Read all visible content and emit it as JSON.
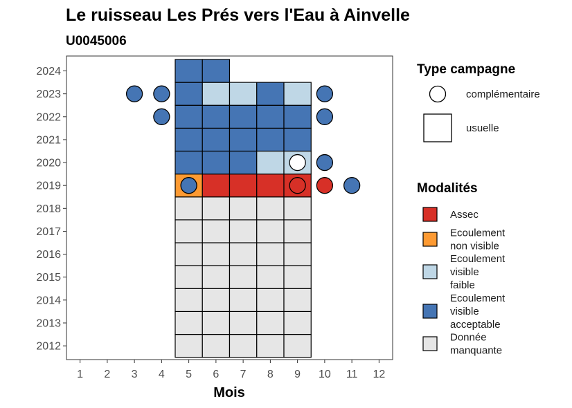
{
  "chart_data": {
    "type": "heatmap",
    "title": "Le ruisseau Les Prés vers l'Eau à Ainvelle",
    "subtitle": "U0045006",
    "xlabel": "Mois",
    "ylabel": "",
    "x_ticks": [
      1,
      2,
      3,
      4,
      5,
      6,
      7,
      8,
      9,
      10,
      11,
      12
    ],
    "y_ticks": [
      2012,
      2013,
      2014,
      2015,
      2016,
      2017,
      2018,
      2019,
      2020,
      2021,
      2022,
      2023,
      2024
    ],
    "xlim": [
      0.5,
      12.5
    ],
    "ylim": [
      2011.4,
      2024.65
    ],
    "grid": false,
    "legend_position": "right",
    "modalites": [
      {
        "key": "assec",
        "label_lines": [
          "Assec"
        ],
        "color": "#d73027"
      },
      {
        "key": "nonvisible",
        "label_lines": [
          "Ecoulement",
          "non visible"
        ],
        "color": "#fd9a32"
      },
      {
        "key": "faible",
        "label_lines": [
          "Ecoulement",
          "visible",
          "faible"
        ],
        "color": "#bfd7e6"
      },
      {
        "key": "acceptable",
        "label_lines": [
          "Ecoulement",
          "visible",
          "acceptable"
        ],
        "color": "#4575b4"
      },
      {
        "key": "manquante",
        "label_lines": [
          "Donnée",
          "manquante"
        ],
        "color": "#e6e6e6"
      }
    ],
    "type_campagne": {
      "title": "Type campagne",
      "items": [
        {
          "key": "complementaire",
          "label": "complémentaire",
          "shape": "circle"
        },
        {
          "key": "usuelle",
          "label": "usuelle",
          "shape": "square"
        }
      ]
    },
    "legend_modalites_title": "Modalités",
    "usuelle": [
      {
        "year": 2012,
        "month": 5,
        "m": "manquante"
      },
      {
        "year": 2012,
        "month": 6,
        "m": "manquante"
      },
      {
        "year": 2012,
        "month": 7,
        "m": "manquante"
      },
      {
        "year": 2012,
        "month": 8,
        "m": "manquante"
      },
      {
        "year": 2012,
        "month": 9,
        "m": "manquante"
      },
      {
        "year": 2013,
        "month": 5,
        "m": "manquante"
      },
      {
        "year": 2013,
        "month": 6,
        "m": "manquante"
      },
      {
        "year": 2013,
        "month": 7,
        "m": "manquante"
      },
      {
        "year": 2013,
        "month": 8,
        "m": "manquante"
      },
      {
        "year": 2013,
        "month": 9,
        "m": "manquante"
      },
      {
        "year": 2014,
        "month": 5,
        "m": "manquante"
      },
      {
        "year": 2014,
        "month": 6,
        "m": "manquante"
      },
      {
        "year": 2014,
        "month": 7,
        "m": "manquante"
      },
      {
        "year": 2014,
        "month": 8,
        "m": "manquante"
      },
      {
        "year": 2014,
        "month": 9,
        "m": "manquante"
      },
      {
        "year": 2015,
        "month": 5,
        "m": "manquante"
      },
      {
        "year": 2015,
        "month": 6,
        "m": "manquante"
      },
      {
        "year": 2015,
        "month": 7,
        "m": "manquante"
      },
      {
        "year": 2015,
        "month": 8,
        "m": "manquante"
      },
      {
        "year": 2015,
        "month": 9,
        "m": "manquante"
      },
      {
        "year": 2016,
        "month": 5,
        "m": "manquante"
      },
      {
        "year": 2016,
        "month": 6,
        "m": "manquante"
      },
      {
        "year": 2016,
        "month": 7,
        "m": "manquante"
      },
      {
        "year": 2016,
        "month": 8,
        "m": "manquante"
      },
      {
        "year": 2016,
        "month": 9,
        "m": "manquante"
      },
      {
        "year": 2017,
        "month": 5,
        "m": "manquante"
      },
      {
        "year": 2017,
        "month": 6,
        "m": "manquante"
      },
      {
        "year": 2017,
        "month": 7,
        "m": "manquante"
      },
      {
        "year": 2017,
        "month": 8,
        "m": "manquante"
      },
      {
        "year": 2017,
        "month": 9,
        "m": "manquante"
      },
      {
        "year": 2018,
        "month": 5,
        "m": "manquante"
      },
      {
        "year": 2018,
        "month": 6,
        "m": "manquante"
      },
      {
        "year": 2018,
        "month": 7,
        "m": "manquante"
      },
      {
        "year": 2018,
        "month": 8,
        "m": "manquante"
      },
      {
        "year": 2018,
        "month": 9,
        "m": "manquante"
      },
      {
        "year": 2019,
        "month": 5,
        "m": "nonvisible"
      },
      {
        "year": 2019,
        "month": 6,
        "m": "assec"
      },
      {
        "year": 2019,
        "month": 7,
        "m": "assec"
      },
      {
        "year": 2019,
        "month": 8,
        "m": "assec"
      },
      {
        "year": 2019,
        "month": 9,
        "m": "assec"
      },
      {
        "year": 2020,
        "month": 5,
        "m": "acceptable"
      },
      {
        "year": 2020,
        "month": 6,
        "m": "acceptable"
      },
      {
        "year": 2020,
        "month": 7,
        "m": "acceptable"
      },
      {
        "year": 2020,
        "month": 8,
        "m": "faible"
      },
      {
        "year": 2020,
        "month": 9,
        "m": "faible"
      },
      {
        "year": 2021,
        "month": 5,
        "m": "acceptable"
      },
      {
        "year": 2021,
        "month": 6,
        "m": "acceptable"
      },
      {
        "year": 2021,
        "month": 7,
        "m": "acceptable"
      },
      {
        "year": 2021,
        "month": 8,
        "m": "acceptable"
      },
      {
        "year": 2021,
        "month": 9,
        "m": "acceptable"
      },
      {
        "year": 2022,
        "month": 5,
        "m": "acceptable"
      },
      {
        "year": 2022,
        "month": 6,
        "m": "acceptable"
      },
      {
        "year": 2022,
        "month": 7,
        "m": "acceptable"
      },
      {
        "year": 2022,
        "month": 8,
        "m": "acceptable"
      },
      {
        "year": 2022,
        "month": 9,
        "m": "acceptable"
      },
      {
        "year": 2023,
        "month": 5,
        "m": "acceptable"
      },
      {
        "year": 2023,
        "month": 6,
        "m": "faible"
      },
      {
        "year": 2023,
        "month": 7,
        "m": "faible"
      },
      {
        "year": 2023,
        "month": 8,
        "m": "acceptable"
      },
      {
        "year": 2023,
        "month": 9,
        "m": "faible"
      },
      {
        "year": 2024,
        "month": 5,
        "m": "acceptable"
      },
      {
        "year": 2024,
        "month": 6,
        "m": "acceptable"
      }
    ],
    "complementaire": [
      {
        "year": 2019,
        "month": 5,
        "m": "acceptable"
      },
      {
        "year": 2019,
        "month": 9,
        "m": "assec"
      },
      {
        "year": 2019,
        "month": 10,
        "m": "assec"
      },
      {
        "year": 2019,
        "month": 11,
        "m": "acceptable"
      },
      {
        "year": 2020,
        "month": 9,
        "m": "manquante_white"
      },
      {
        "year": 2020,
        "month": 10,
        "m": "acceptable"
      },
      {
        "year": 2022,
        "month": 4,
        "m": "acceptable"
      },
      {
        "year": 2022,
        "month": 10,
        "m": "acceptable"
      },
      {
        "year": 2023,
        "month": 3,
        "m": "acceptable"
      },
      {
        "year": 2023,
        "month": 4,
        "m": "acceptable"
      },
      {
        "year": 2023,
        "month": 10,
        "m": "acceptable"
      }
    ],
    "white_fill": "#ffffff"
  }
}
